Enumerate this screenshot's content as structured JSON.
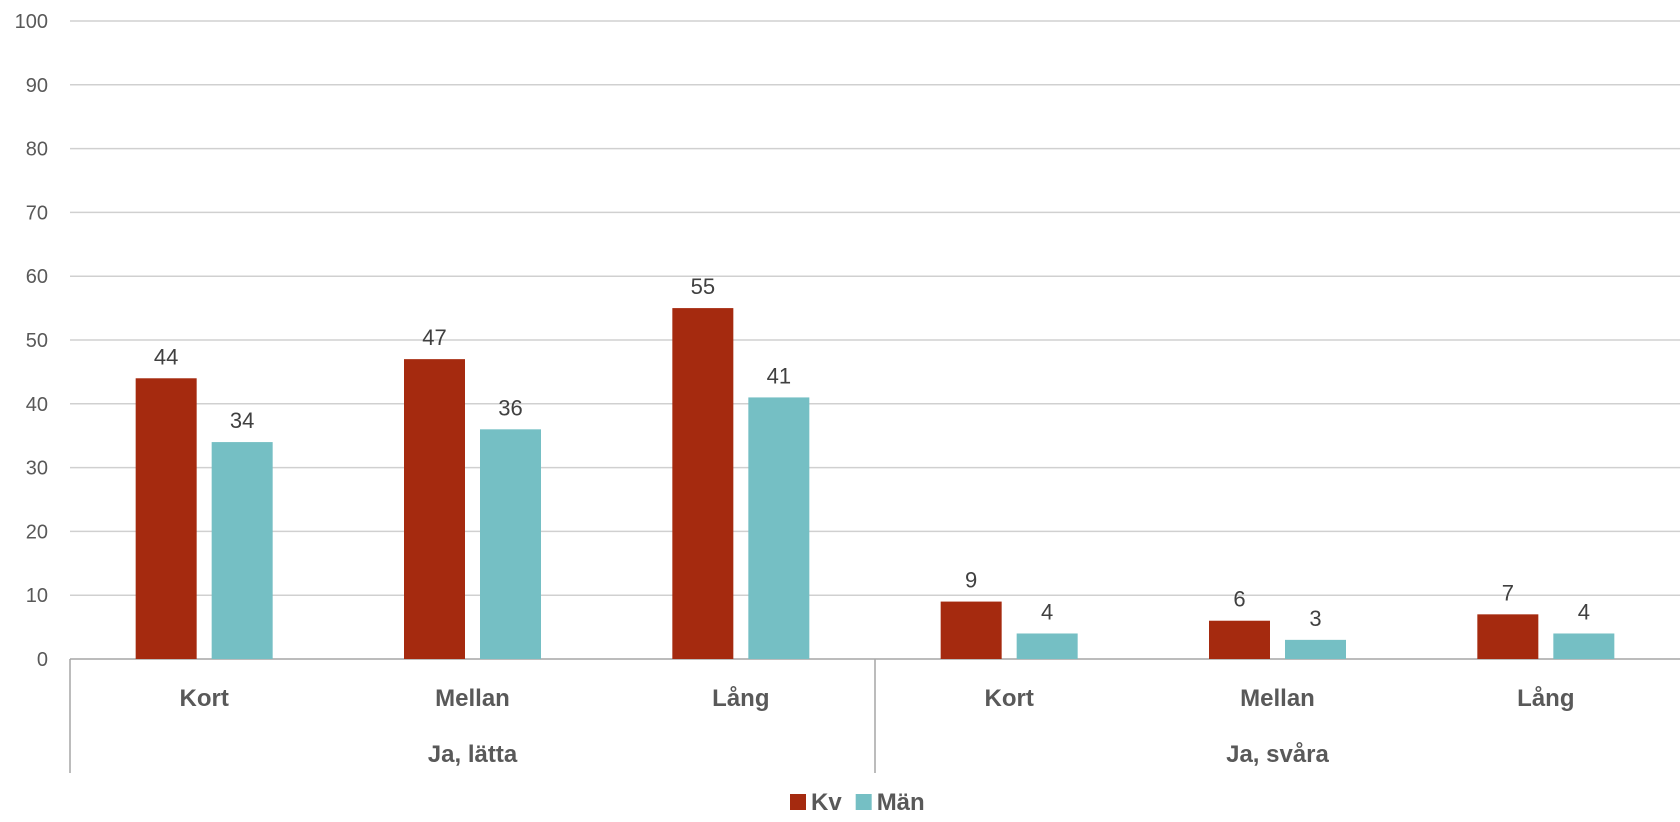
{
  "chart_data": {
    "type": "bar",
    "groups": [
      {
        "label": "Ja, lätta",
        "categories": [
          "Kort",
          "Mellan",
          "Lång"
        ]
      },
      {
        "label": "Ja, svåra",
        "categories": [
          "Kort",
          "Mellan",
          "Lång"
        ]
      }
    ],
    "categories": [
      "Kort",
      "Mellan",
      "Lång",
      "Kort",
      "Mellan",
      "Lång"
    ],
    "series": [
      {
        "name": "Kv",
        "color": "#A52A0F",
        "values": [
          44,
          47,
          55,
          9,
          6,
          7
        ]
      },
      {
        "name": "Män",
        "color": "#75BFC4",
        "values": [
          34,
          36,
          41,
          4,
          3,
          4
        ]
      }
    ],
    "ylim": [
      0,
      100
    ],
    "yticks": [
      0,
      10,
      20,
      30,
      40,
      50,
      60,
      70,
      80,
      90,
      100
    ],
    "grid": true,
    "legend_position": "bottom-center",
    "data_labels": true
  }
}
